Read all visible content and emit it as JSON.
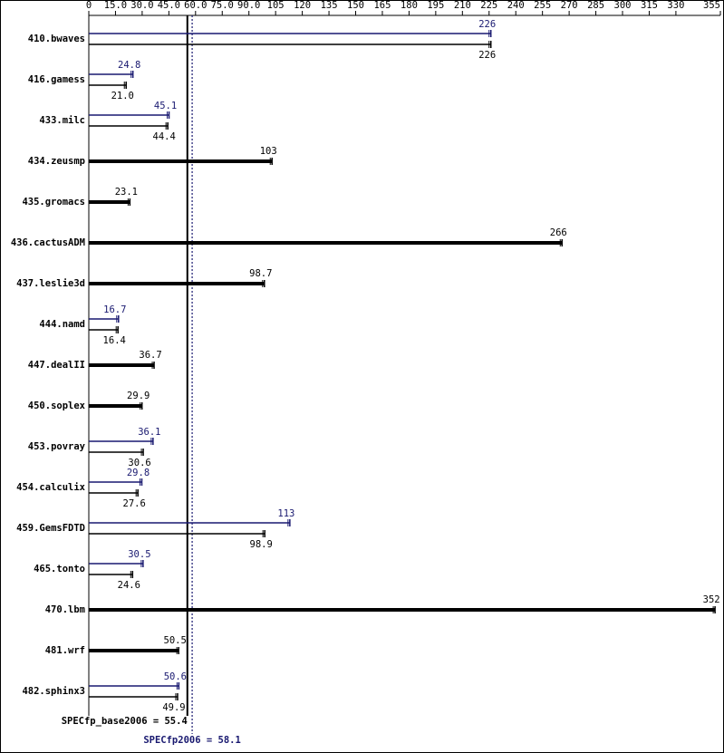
{
  "chart_data": {
    "type": "hbar",
    "categories": [
      "410.bwaves",
      "416.gamess",
      "433.milc",
      "434.zeusmp",
      "435.gromacs",
      "436.cactusADM",
      "437.leslie3d",
      "444.namd",
      "447.dealII",
      "450.soplex",
      "453.povray",
      "454.calculix",
      "459.GemsFDTD",
      "465.tonto",
      "470.lbm",
      "481.wrf",
      "482.sphinx3"
    ],
    "series": [
      {
        "color": "#191970",
        "values": [
          226,
          24.8,
          45.1,
          null,
          null,
          null,
          null,
          16.7,
          null,
          null,
          36.1,
          29.8,
          113,
          30.5,
          null,
          null,
          50.6
        ],
        "value_labels": [
          "226",
          "24.8",
          "45.1",
          null,
          null,
          null,
          null,
          "16.7",
          null,
          null,
          "36.1",
          "29.8",
          "113",
          "30.5",
          null,
          null,
          "50.6"
        ]
      },
      {
        "color": "#000000",
        "values": [
          226,
          21.0,
          44.4,
          103,
          23.1,
          266,
          98.7,
          16.4,
          36.7,
          29.9,
          30.6,
          27.6,
          98.9,
          24.6,
          352,
          50.5,
          49.9
        ],
        "value_labels": [
          "226",
          "21.0",
          "44.4",
          "103",
          "23.1",
          "266",
          "98.7",
          "16.4",
          "36.7",
          "29.9",
          "30.6",
          "27.6",
          "98.9",
          "24.6",
          "352",
          "50.5",
          "49.9"
        ]
      }
    ],
    "xlim": [
      0,
      355
    ],
    "xticks": [
      0,
      {
        "value": 15,
        "label": "15.0"
      },
      {
        "value": 30,
        "label": "30.0"
      },
      {
        "value": 45,
        "label": "45.0"
      },
      {
        "value": 60,
        "label": "60.0"
      },
      {
        "value": 75,
        "label": "75.0"
      },
      {
        "value": 90,
        "label": "90.0"
      },
      105,
      120,
      135,
      150,
      165,
      180,
      195,
      210,
      225,
      240,
      255,
      270,
      285,
      300,
      315,
      330,
      355
    ],
    "summary": [
      {
        "label": "SPECfp_base2006 = 55.4",
        "value": 55.4,
        "color": "#000000"
      },
      {
        "label": "SPECfp2006 = 58.1",
        "value": 58.1,
        "color": "#191970"
      }
    ]
  }
}
